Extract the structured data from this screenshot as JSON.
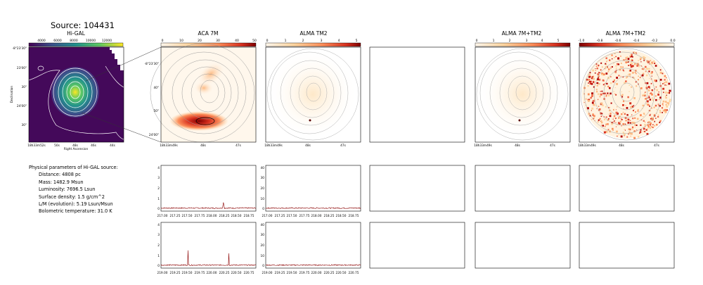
{
  "source_title": "Source: 104431",
  "panels": {
    "higal": {
      "title": "Hi-GAL",
      "colorbar_ticks": [
        "4000",
        "6000",
        "8000",
        "10000",
        "12000"
      ],
      "ra_ticks": [
        "18h33m52s",
        "50s",
        "48s",
        "46s",
        "44s"
      ],
      "dec_ticks": [
        "-8°23'30\"",
        "23'00\"",
        "30\"",
        "24'00\"",
        "30\""
      ],
      "xlabel": "Right Ascension",
      "ylabel": "Declination"
    },
    "aca": {
      "title": "ACA 7M",
      "colorbar_ticks": [
        "0",
        "10",
        "20",
        "30",
        "40",
        "50"
      ],
      "ra_ticks": [
        "18h33m49s",
        "48s",
        "47s"
      ],
      "dec_ticks": [
        "-8°23'30\"",
        "40\"",
        "50\"",
        "24'00\""
      ]
    },
    "tm2": {
      "title": "ALMA TM2",
      "colorbar_ticks": [
        "0",
        "1",
        "2",
        "3",
        "4",
        "5"
      ],
      "ra_ticks": [
        "18h33m49s",
        "48s",
        "47s"
      ]
    },
    "combo": {
      "title": "ALMA 7M+TM2",
      "colorbar_ticks": [
        "0",
        "1",
        "2",
        "3",
        "4",
        "5"
      ],
      "ra_ticks": [
        "18h33m49s",
        "48s",
        "47s"
      ]
    },
    "combo2": {
      "title": "ALMA 7M+TM2",
      "colorbar_ticks": [
        "-1.0",
        "-0.8",
        "-0.6",
        "-0.4",
        "-0.2",
        "0.0"
      ],
      "ra_ticks": [
        "18h33m49s",
        "48s",
        "47s"
      ]
    }
  },
  "params": {
    "heading": "Physical parameters of Hi-GAL source:",
    "lines": [
      "Distance: 4808 pc",
      "Mass: 1482.9 Msun",
      "Luminosity: 7696.5 Lsun",
      "Surface density: 1.5 g/cm^2",
      "L/M (evolution): 5.19 Lsun/Msun",
      "Bolometric temperature: 31.0 K"
    ]
  },
  "spectra": {
    "row1_xticks": [
      "217.00",
      "217.25",
      "217.50",
      "217.75",
      "218.00",
      "218.25",
      "218.50",
      "218.75"
    ],
    "row2_xticks": [
      "219.00",
      "219.25",
      "219.50",
      "219.75",
      "220.00",
      "220.25",
      "220.50",
      "220.75"
    ],
    "aca_yticks": [
      "0",
      "1",
      "2",
      "3",
      "4"
    ],
    "tm2_yticks": [
      "0",
      "10",
      "20",
      "30",
      "40"
    ]
  },
  "chart_data": [
    {
      "type": "line",
      "panel": "ACA 7M spectrum, row 1",
      "xlim": [
        216.95,
        218.88
      ],
      "ylim": [
        -0.3,
        4.2
      ],
      "series": [
        {
          "values": [
            [
              216.95,
              0.0
            ],
            [
              218.2,
              0.0
            ],
            [
              218.22,
              0.55
            ],
            [
              218.24,
              0.0
            ],
            [
              218.88,
              0.0
            ]
          ]
        }
      ]
    },
    {
      "type": "line",
      "panel": "ALMA TM2 spectrum, row 1",
      "xlim": [
        216.95,
        218.88
      ],
      "ylim": [
        -3,
        42
      ],
      "series": [
        {
          "values": [
            [
              216.95,
              0.0
            ],
            [
              218.88,
              0.0
            ]
          ]
        }
      ]
    },
    {
      "type": "line",
      "panel": "ACA 7M spectrum, row 2",
      "xlim": [
        218.95,
        220.88
      ],
      "ylim": [
        -0.3,
        4.2
      ],
      "series": [
        {
          "values": [
            [
              218.95,
              0.0
            ],
            [
              219.49,
              0.0
            ],
            [
              219.5,
              1.45
            ],
            [
              219.51,
              0.0
            ],
            [
              220.32,
              0.0
            ],
            [
              220.33,
              1.15
            ],
            [
              220.34,
              0.0
            ],
            [
              220.88,
              0.0
            ]
          ]
        }
      ]
    },
    {
      "type": "line",
      "panel": "ALMA TM2 spectrum, row 2",
      "xlim": [
        218.95,
        220.88
      ],
      "ylim": [
        -3,
        42
      ],
      "series": [
        {
          "values": [
            [
              218.95,
              0.0
            ],
            [
              220.88,
              0.0
            ]
          ]
        }
      ]
    }
  ]
}
